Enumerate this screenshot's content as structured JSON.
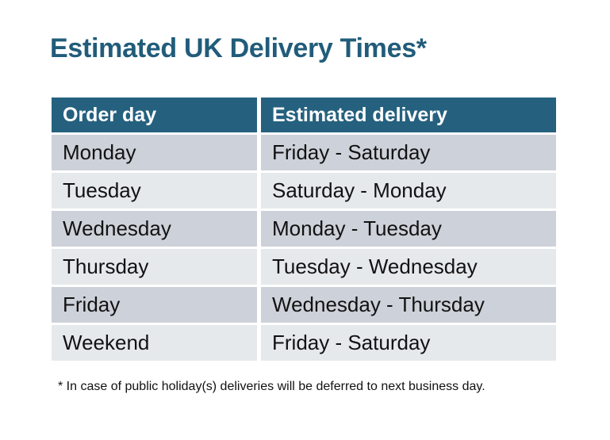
{
  "page": {
    "title": "Estimated UK Delivery Times*",
    "footnote": "* In case of public holiday(s) deliveries will be deferred to next business day."
  },
  "table": {
    "columns": [
      "Order day",
      "Estimated delivery"
    ],
    "rows": [
      {
        "order_day": "Monday",
        "estimated_delivery": "Friday - Saturday"
      },
      {
        "order_day": "Tuesday",
        "estimated_delivery": "Saturday - Monday"
      },
      {
        "order_day": "Wednesday",
        "estimated_delivery": "Monday - Tuesday"
      },
      {
        "order_day": "Thursday",
        "estimated_delivery": "Tuesday - Wednesday"
      },
      {
        "order_day": "Friday",
        "estimated_delivery": "Wednesday - Thursday"
      },
      {
        "order_day": "Weekend",
        "estimated_delivery": "Friday - Saturday"
      }
    ]
  },
  "colors": {
    "header_bg": "#25617F",
    "header_text": "#FFFFFF",
    "title_text": "#215C7A",
    "row_dark": "#CDD1D9",
    "row_light": "#E6E9EC",
    "body_text": "#121212",
    "page_bg": "#FFFFFF"
  }
}
